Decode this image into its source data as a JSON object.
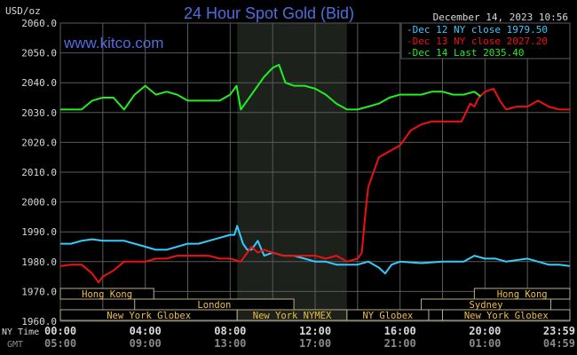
{
  "chart_data": {
    "type": "line",
    "title": "24 Hour Spot Gold (Bid)",
    "watermark": "www.kitco.com",
    "timestamp": "December 14, 2023 10:56",
    "ylabel": "USD/oz",
    "ylim": [
      1960,
      2060
    ],
    "yticks": [
      "2060.0",
      "2050.0",
      "2040.0",
      "2030.0",
      "2020.0",
      "2010.0",
      "2000.0",
      "1990.0",
      "1980.0",
      "1970.0",
      "1960.0"
    ],
    "xlim_hours": [
      0,
      24
    ],
    "grid": true,
    "legend_placement": "top-right",
    "xaxis_rows": [
      {
        "label": "NY Time",
        "ticks": [
          "00:00",
          "04:00",
          "08:00",
          "12:00",
          "16:00",
          "20:00",
          "23:59"
        ]
      },
      {
        "label": "GMT",
        "ticks": [
          "05:00",
          "09:00",
          "13:00",
          "17:00",
          "21:00",
          "01:00",
          "04:59"
        ]
      }
    ],
    "highlight_hours": [
      8.33,
      13.5
    ],
    "series": [
      {
        "name": "Dec 12 NY close 1979.50",
        "color": "#33ccff",
        "x": [
          0,
          0.5,
          1,
          1.5,
          2,
          2.5,
          3,
          3.5,
          4,
          4.5,
          5,
          5.5,
          6,
          6.5,
          7,
          7.5,
          8,
          8.2,
          8.33,
          8.6,
          8.8,
          9,
          9.3,
          9.6,
          10,
          10.5,
          11,
          11.5,
          12,
          12.5,
          13,
          13.5,
          14,
          14.5,
          15,
          15.3,
          15.6,
          16,
          17,
          18,
          19,
          19.5,
          20,
          20.5,
          21,
          22,
          22.5,
          23,
          23.5,
          23.99
        ],
        "y": [
          1986,
          1986,
          1987,
          1987.5,
          1987,
          1987,
          1987,
          1986,
          1985,
          1984,
          1984,
          1985,
          1986,
          1986,
          1987,
          1988,
          1989,
          1989,
          1992,
          1986,
          1984,
          1984,
          1987,
          1982,
          1983,
          1982,
          1982,
          1981,
          1980,
          1980,
          1979,
          1979,
          1979,
          1980,
          1978,
          1976,
          1979,
          1980,
          1979.5,
          1980,
          1980,
          1982,
          1981,
          1981,
          1980,
          1981,
          1980,
          1979,
          1979,
          1978.5
        ]
      },
      {
        "name": "Dec 13 NY close 2027.20",
        "color": "#ee1111",
        "x": [
          0,
          0.5,
          1,
          1.5,
          1.8,
          2,
          2.5,
          3,
          3.5,
          4,
          4.5,
          5,
          5.5,
          6,
          6.5,
          7,
          7.5,
          8,
          8.5,
          9,
          9.3,
          9.6,
          10,
          10.5,
          11,
          11.5,
          12,
          12.5,
          13,
          13.5,
          14,
          14.2,
          14.35,
          14.5,
          14.7,
          15,
          15.5,
          16,
          16.5,
          17,
          17.5,
          18,
          18.5,
          18.9,
          19.1,
          19.3,
          19.5,
          19.7,
          20,
          20.4,
          20.7,
          21,
          21.5,
          22,
          22.5,
          23,
          23.5,
          23.99
        ],
        "y": [
          1978.5,
          1979,
          1979,
          1976,
          1973,
          1975,
          1977,
          1980,
          1980,
          1980,
          1981,
          1981,
          1982,
          1982,
          1982,
          1982,
          1981,
          1981,
          1980,
          1985,
          1983,
          1984,
          1983,
          1982,
          1982,
          1982,
          1982,
          1981,
          1982,
          1980,
          1981,
          1983,
          1995,
          2005,
          2009,
          2015,
          2017,
          2019,
          2024,
          2026,
          2027,
          2027,
          2027,
          2027,
          2030,
          2033,
          2032,
          2035,
          2037,
          2038,
          2034,
          2031,
          2032,
          2032,
          2034,
          2032,
          2031,
          2031
        ]
      },
      {
        "name": "Dec 14 Last 2035.40",
        "color": "#22ee22",
        "x": [
          0,
          0.5,
          1,
          1.5,
          2,
          2.5,
          3,
          3.5,
          4,
          4.5,
          5,
          5.5,
          6,
          6.5,
          7,
          7.5,
          8,
          8.3,
          8.5,
          9,
          9.3,
          9.6,
          10,
          10.3,
          10.6,
          11,
          11.5,
          12,
          12.5,
          13,
          13.5,
          14,
          14.5,
          15,
          15.5,
          16,
          16.5,
          17,
          17.5,
          18,
          18.5,
          19,
          19.5,
          19.8
        ],
        "y": [
          2031,
          2031,
          2031,
          2034,
          2035,
          2035,
          2031,
          2036,
          2039,
          2036,
          2037,
          2036,
          2034,
          2034,
          2034,
          2034,
          2036,
          2039,
          2031,
          2036,
          2039,
          2042,
          2045,
          2046,
          2040,
          2039,
          2039,
          2038,
          2036,
          2033,
          2031,
          2031,
          2032,
          2033,
          2035,
          2036,
          2036,
          2036,
          2037,
          2037,
          2036,
          2036,
          2037,
          2035.4
        ]
      }
    ],
    "sessions": [
      {
        "label": "Hong Kong",
        "row": 0,
        "start": 0,
        "end": 4.4
      },
      {
        "label": "Hong Kong",
        "row": 0,
        "start": 19.5,
        "end": 24
      },
      {
        "label": "London",
        "row": 1,
        "start": 3.5,
        "end": 11
      },
      {
        "label": "Sydney",
        "row": 1,
        "start": 17,
        "end": 23.1
      },
      {
        "label": "New York Globex",
        "row": 2,
        "start": 0,
        "end": 8.33
      },
      {
        "label": "New York NYMEX",
        "row": 2,
        "start": 8.33,
        "end": 13.5
      },
      {
        "label": "NY Globex",
        "row": 2,
        "start": 13.5,
        "end": 17.35
      },
      {
        "label": "",
        "row": 2,
        "start": 17.35,
        "end": 18
      },
      {
        "label": "New York Globex",
        "row": 2,
        "start": 18,
        "end": 24
      }
    ],
    "colors": {
      "title": "#4e6ee0",
      "grid": "#5a5a5a",
      "axis_text": "#d8d8d8",
      "gmt_text": "#8a8a8a",
      "session_text": "#f0c040",
      "session_border": "#b8ae88",
      "highlight": "#1c211c"
    }
  }
}
